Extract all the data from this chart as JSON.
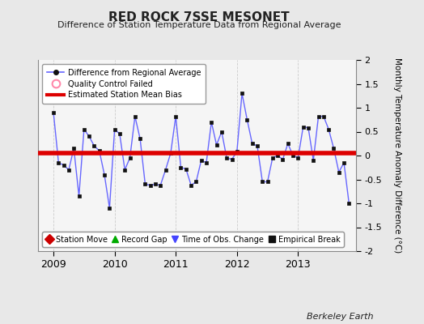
{
  "title": "RED ROCK 7SSE MESONET",
  "subtitle": "Difference of Station Temperature Data from Regional Average",
  "ylabel": "Monthly Temperature Anomaly Difference (°C)",
  "bg_color": "#e8e8e8",
  "plot_bg_color": "#f5f5f5",
  "ylim": [
    -2,
    2
  ],
  "xlim": [
    2008.75,
    2013.95
  ],
  "bias_line_start": 2008.75,
  "bias_line_end": 2013.95,
  "bias_value": 0.05,
  "x_ticks": [
    2009,
    2010,
    2011,
    2012,
    2013
  ],
  "data_x": [
    2009.0,
    2009.083,
    2009.167,
    2009.25,
    2009.333,
    2009.417,
    2009.5,
    2009.583,
    2009.667,
    2009.75,
    2009.833,
    2009.917,
    2010.0,
    2010.083,
    2010.167,
    2010.25,
    2010.333,
    2010.417,
    2010.5,
    2010.583,
    2010.667,
    2010.75,
    2010.833,
    2010.917,
    2011.0,
    2011.083,
    2011.167,
    2011.25,
    2011.333,
    2011.417,
    2011.5,
    2011.583,
    2011.667,
    2011.75,
    2011.833,
    2011.917,
    2012.0,
    2012.083,
    2012.167,
    2012.25,
    2012.333,
    2012.417,
    2012.5,
    2012.583,
    2012.667,
    2012.75,
    2012.833,
    2012.917,
    2013.0,
    2013.083,
    2013.167,
    2013.25,
    2013.333,
    2013.417,
    2013.5,
    2013.583,
    2013.667,
    2013.75,
    2013.833
  ],
  "data_y": [
    0.9,
    -0.15,
    -0.2,
    -0.3,
    0.15,
    -0.85,
    0.55,
    0.4,
    0.2,
    0.1,
    -0.4,
    -1.1,
    0.55,
    0.45,
    -0.3,
    -0.05,
    0.82,
    0.35,
    -0.6,
    -0.62,
    -0.6,
    -0.62,
    -0.3,
    0.05,
    0.82,
    -0.25,
    -0.28,
    -0.62,
    -0.55,
    -0.1,
    -0.15,
    0.7,
    0.22,
    0.5,
    -0.05,
    -0.08,
    0.08,
    1.3,
    0.75,
    0.25,
    0.2,
    -0.55,
    -0.55,
    -0.05,
    0.0,
    -0.08,
    0.25,
    0.0,
    -0.05,
    0.6,
    0.58,
    -0.1,
    0.82,
    0.82,
    0.55,
    0.15,
    -0.35,
    -0.15,
    -1.0
  ],
  "line_color": "#6666ff",
  "marker_color": "#111111",
  "marker_size": 3.5,
  "bias_color": "#dd0000",
  "bias_linewidth": 4.0,
  "grid_color": "#cccccc",
  "berkeley_earth_text": "Berkeley Earth",
  "yticks": [
    -2,
    -1.5,
    -1,
    -0.5,
    0,
    0.5,
    1,
    1.5,
    2
  ],
  "legend1": [
    {
      "label": "Difference from Regional Average",
      "lcolor": "#6666ff",
      "mcolor": "#111111",
      "mstyle": "o",
      "lw": 1.2
    },
    {
      "label": "Quality Control Failed",
      "lcolor": "none",
      "mcolor": "none",
      "mec": "#ff88aa",
      "mstyle": "o",
      "lw": 0
    },
    {
      "label": "Estimated Station Mean Bias",
      "lcolor": "#dd0000",
      "mcolor": "none",
      "mstyle": "none",
      "lw": 3.0
    }
  ],
  "legend2": [
    {
      "label": "Station Move",
      "mcolor": "#cc0000",
      "mstyle": "D"
    },
    {
      "label": "Record Gap",
      "mcolor": "#00aa00",
      "mstyle": "^"
    },
    {
      "label": "Time of Obs. Change",
      "mcolor": "#4444ff",
      "mstyle": "v"
    },
    {
      "label": "Empirical Break",
      "mcolor": "#111111",
      "mstyle": "s"
    }
  ]
}
